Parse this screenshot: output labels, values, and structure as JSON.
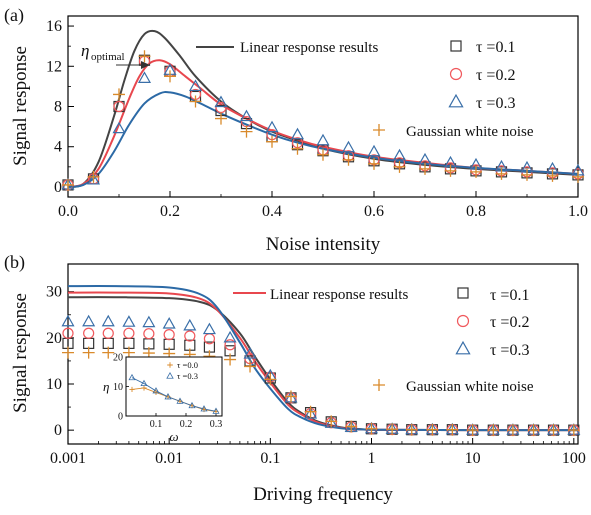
{
  "chart_data": [
    {
      "type": "line",
      "panel_label": "(a)",
      "xlabel": "Noise intensity",
      "ylabel": "Signal response",
      "xlim": [
        0,
        1.0
      ],
      "ylim": [
        -1,
        17
      ],
      "x_scale": "linear",
      "x_ticks": [
        0.0,
        0.2,
        0.4,
        0.6,
        0.8,
        1.0
      ],
      "x_tick_labels": [
        "0.0",
        "0.2",
        "0.4",
        "0.6",
        "0.8",
        "1.0"
      ],
      "y_ticks": [
        0,
        4,
        8,
        12,
        16
      ],
      "y_tick_labels": [
        "0",
        "4",
        "8",
        "12",
        "16"
      ],
      "annotation": {
        "text": "η",
        "subscript": "optimal",
        "x": 0.16,
        "y": 13.2
      },
      "legend_line_label": "Linear response results",
      "legend_noise_label": "Gaussian white noise",
      "legend_tau": [
        {
          "tau": "τ =0.1",
          "marker": "square",
          "color": "#333333"
        },
        {
          "tau": "τ =0.2",
          "marker": "circle",
          "color": "#f0585c"
        },
        {
          "tau": "τ =0.3",
          "marker": "triangle",
          "color": "#3a6fa8"
        }
      ],
      "lines": [
        {
          "color": "#444444",
          "x": [
            0,
            0.03,
            0.06,
            0.09,
            0.11,
            0.13,
            0.15,
            0.17,
            0.19,
            0.22,
            0.25,
            0.3,
            0.35,
            0.4,
            0.45,
            0.5,
            0.6,
            0.7,
            0.8,
            0.9,
            1.0
          ],
          "y": [
            0,
            0.3,
            2.5,
            7.0,
            10.5,
            13.5,
            15.2,
            15.5,
            14.8,
            13.0,
            11.0,
            8.5,
            6.8,
            5.5,
            4.6,
            3.8,
            2.8,
            2.2,
            1.8,
            1.5,
            1.2
          ]
        },
        {
          "color": "#e8474e",
          "x": [
            0,
            0.03,
            0.06,
            0.09,
            0.12,
            0.14,
            0.16,
            0.18,
            0.2,
            0.23,
            0.26,
            0.3,
            0.35,
            0.4,
            0.45,
            0.5,
            0.6,
            0.7,
            0.8,
            0.9,
            1.0
          ],
          "y": [
            0,
            0.3,
            1.8,
            5.0,
            8.8,
            11.0,
            12.3,
            12.6,
            12.2,
            11.0,
            9.8,
            8.2,
            6.8,
            5.6,
            4.7,
            4.0,
            3.0,
            2.4,
            1.9,
            1.6,
            1.3
          ]
        },
        {
          "color": "#2c6aa6",
          "x": [
            0,
            0.03,
            0.06,
            0.09,
            0.12,
            0.15,
            0.18,
            0.2,
            0.23,
            0.26,
            0.3,
            0.35,
            0.4,
            0.45,
            0.5,
            0.6,
            0.7,
            0.8,
            0.9,
            1.0
          ],
          "y": [
            0,
            0.2,
            1.3,
            3.5,
            6.2,
            8.3,
            9.3,
            9.4,
            9.0,
            8.3,
            7.3,
            6.2,
            5.2,
            4.4,
            3.8,
            2.9,
            2.3,
            1.9,
            1.6,
            1.3
          ]
        }
      ],
      "series": [
        {
          "name": "τ =0.1",
          "marker": "square",
          "color": "#333333",
          "x": [
            0.0,
            0.05,
            0.1,
            0.15,
            0.2,
            0.25,
            0.3,
            0.35,
            0.4,
            0.45,
            0.5,
            0.55,
            0.6,
            0.65,
            0.7,
            0.75,
            0.8,
            0.85,
            0.9,
            0.95,
            1.0
          ],
          "y": [
            0.2,
            0.8,
            8.0,
            12.6,
            11.5,
            9.0,
            7.6,
            6.3,
            5.0,
            4.2,
            3.6,
            3.0,
            2.6,
            2.3,
            2.0,
            1.8,
            1.6,
            1.5,
            1.4,
            1.3,
            1.2
          ]
        },
        {
          "name": "τ =0.2",
          "marker": "circle",
          "color": "#f0585c",
          "x": [
            0.0,
            0.05,
            0.1,
            0.15,
            0.2,
            0.25,
            0.3,
            0.35,
            0.4,
            0.45,
            0.5,
            0.55,
            0.6,
            0.65,
            0.7,
            0.75,
            0.8,
            0.85,
            0.9,
            0.95,
            1.0
          ],
          "y": [
            0.2,
            0.8,
            8.0,
            12.5,
            11.5,
            9.2,
            7.9,
            6.5,
            5.2,
            4.4,
            3.7,
            3.1,
            2.7,
            2.4,
            2.1,
            1.9,
            1.7,
            1.6,
            1.5,
            1.4,
            1.3
          ]
        },
        {
          "name": "τ =0.3",
          "marker": "triangle",
          "color": "#3a6fa8",
          "x": [
            0.0,
            0.05,
            0.1,
            0.15,
            0.2,
            0.25,
            0.3,
            0.35,
            0.4,
            0.45,
            0.5,
            0.55,
            0.6,
            0.65,
            0.7,
            0.75,
            0.8,
            0.85,
            0.9,
            0.95,
            1.0
          ],
          "y": [
            0.2,
            0.7,
            5.8,
            10.8,
            11.6,
            10.0,
            8.4,
            7.0,
            5.9,
            5.2,
            4.6,
            3.9,
            3.5,
            3.1,
            2.7,
            2.4,
            2.2,
            2.0,
            1.9,
            1.8,
            1.6
          ]
        },
        {
          "name": "Gaussian white noise",
          "marker": "plus",
          "color": "#d98a2b",
          "x": [
            0.0,
            0.05,
            0.1,
            0.15,
            0.2,
            0.25,
            0.3,
            0.35,
            0.4,
            0.45,
            0.5,
            0.55,
            0.6,
            0.65,
            0.7,
            0.75,
            0.8,
            0.85,
            0.9,
            0.95,
            1.0
          ],
          "y": [
            0.2,
            1.0,
            9.2,
            13.0,
            11.0,
            8.5,
            6.8,
            5.5,
            4.5,
            3.8,
            3.2,
            2.7,
            2.3,
            2.0,
            1.8,
            1.6,
            1.5,
            1.3,
            1.2,
            1.1,
            1.0
          ]
        }
      ]
    },
    {
      "type": "line",
      "panel_label": "(b)",
      "xlabel": "Driving frequency",
      "ylabel": "Signal response",
      "xlim": [
        0.001,
        110
      ],
      "ylim": [
        -3,
        36
      ],
      "x_scale": "log",
      "x_ticks": [
        0.001,
        0.01,
        0.1,
        1,
        10,
        100
      ],
      "x_tick_labels": [
        "0.001",
        "0.01",
        "0.1",
        "1",
        "10",
        "100"
      ],
      "y_ticks": [
        0,
        10,
        20,
        30
      ],
      "y_tick_labels": [
        "0",
        "10",
        "20",
        "30"
      ],
      "legend_line_label": "Linear response results",
      "legend_noise_label": "Gaussian white noise",
      "legend_tau": [
        {
          "tau": "τ =0.1",
          "marker": "square",
          "color": "#333333"
        },
        {
          "tau": "τ =0.2",
          "marker": "circle",
          "color": "#f0585c"
        },
        {
          "tau": "τ =0.3",
          "marker": "triangle",
          "color": "#3a6fa8"
        }
      ],
      "lines": [
        {
          "color": "#444444",
          "x": [
            0.001,
            0.003,
            0.01,
            0.02,
            0.03,
            0.05,
            0.07,
            0.1,
            0.15,
            0.2,
            0.3,
            0.5,
            0.7,
            1,
            2,
            10,
            110
          ],
          "y": [
            28.8,
            28.8,
            28.6,
            27.8,
            26.0,
            21.0,
            16.0,
            11.0,
            6.0,
            3.8,
            1.8,
            0.6,
            0.3,
            0.1,
            0.05,
            0,
            0
          ]
        },
        {
          "color": "#e8474e",
          "x": [
            0.001,
            0.003,
            0.01,
            0.02,
            0.03,
            0.05,
            0.07,
            0.1,
            0.15,
            0.2,
            0.3,
            0.5,
            0.7,
            1,
            2,
            10,
            110
          ],
          "y": [
            29.8,
            29.8,
            29.6,
            28.5,
            26.0,
            20.0,
            15.0,
            10.3,
            5.5,
            3.5,
            1.6,
            0.5,
            0.2,
            0.1,
            0.05,
            0,
            0
          ]
        },
        {
          "color": "#2c6aa6",
          "x": [
            0.001,
            0.003,
            0.01,
            0.02,
            0.03,
            0.05,
            0.07,
            0.1,
            0.15,
            0.2,
            0.3,
            0.5,
            0.7,
            1,
            2,
            10,
            110
          ],
          "y": [
            31.2,
            31.2,
            30.9,
            29.5,
            26.5,
            19.0,
            13.5,
            9.0,
            4.6,
            2.8,
            1.3,
            0.4,
            0.2,
            0.1,
            0.05,
            0,
            0
          ]
        }
      ],
      "series": [
        {
          "name": "τ =0.1",
          "marker": "square",
          "color": "#333333",
          "x": [
            0.001,
            0.0016,
            0.0025,
            0.004,
            0.0063,
            0.01,
            0.016,
            0.025,
            0.04,
            0.063,
            0.1,
            0.16,
            0.25,
            0.4,
            0.63,
            1,
            1.6,
            2.5,
            4,
            6.3,
            10,
            16,
            25,
            40,
            63,
            100
          ],
          "y": [
            18.8,
            18.8,
            18.8,
            18.8,
            18.7,
            18.6,
            18.4,
            18.0,
            17.2,
            15.0,
            11.3,
            7.0,
            3.8,
            1.8,
            0.8,
            0.3,
            0.2,
            0.1,
            0.1,
            0.1,
            0,
            0,
            0,
            0,
            0,
            0
          ]
        },
        {
          "name": "τ =0.2",
          "marker": "circle",
          "color": "#f0585c",
          "x": [
            0.001,
            0.0016,
            0.0025,
            0.004,
            0.0063,
            0.01,
            0.016,
            0.025,
            0.04,
            0.063,
            0.1,
            0.16,
            0.25,
            0.4,
            0.63,
            1,
            1.6,
            2.5,
            4,
            6.3,
            10,
            16,
            25,
            40,
            63,
            100
          ],
          "y": [
            21.0,
            21.0,
            21.0,
            21.0,
            20.9,
            20.7,
            20.4,
            19.8,
            18.5,
            15.5,
            11.5,
            7.0,
            3.6,
            1.6,
            0.7,
            0.3,
            0.2,
            0.1,
            0.1,
            0.1,
            0,
            0,
            0,
            0,
            0,
            0
          ]
        },
        {
          "name": "τ =0.3",
          "marker": "triangle",
          "color": "#3a6fa8",
          "x": [
            0.001,
            0.0016,
            0.0025,
            0.004,
            0.0063,
            0.01,
            0.016,
            0.025,
            0.04,
            0.063,
            0.1,
            0.16,
            0.25,
            0.4,
            0.63,
            1,
            1.6,
            2.5,
            4,
            6.3,
            10,
            16,
            25,
            40,
            63,
            100
          ],
          "y": [
            23.5,
            23.5,
            23.5,
            23.4,
            23.3,
            23.0,
            22.6,
            21.8,
            20.0,
            16.5,
            11.8,
            7.0,
            3.5,
            1.5,
            0.6,
            0.3,
            0.2,
            0.1,
            0.1,
            0.1,
            0,
            0,
            0,
            0,
            0,
            0
          ]
        },
        {
          "name": "Gaussian white noise",
          "marker": "plus",
          "color": "#d98a2b",
          "x": [
            0.001,
            0.0016,
            0.0025,
            0.004,
            0.0063,
            0.01,
            0.016,
            0.025,
            0.04,
            0.063,
            0.1,
            0.16,
            0.25,
            0.4,
            0.63,
            1,
            1.6,
            2.5,
            4,
            6.3,
            10,
            16,
            25,
            40,
            63,
            100
          ],
          "y": [
            16.8,
            16.8,
            16.8,
            16.8,
            16.7,
            16.6,
            16.4,
            16.0,
            15.3,
            13.8,
            11.0,
            7.3,
            4.0,
            1.9,
            0.8,
            0.3,
            0.2,
            0.1,
            0.1,
            0.1,
            0,
            0,
            0,
            0,
            0,
            0
          ]
        }
      ],
      "inset": {
        "xlabel": "ω",
        "ylabel": "η",
        "x_scale": "linear",
        "xlim": [
          0,
          0.32
        ],
        "ylim": [
          0,
          20
        ],
        "x_ticks": [
          0.1,
          0.2,
          0.3
        ],
        "x_tick_labels": [
          "0.1",
          "0.2",
          "0.3"
        ],
        "y_ticks": [
          0,
          10,
          20
        ],
        "y_tick_labels": [
          "0",
          "10",
          "20"
        ],
        "series": [
          {
            "name": "τ =0.0",
            "marker": "plus",
            "color": "#d98a2b",
            "x": [
              0.02,
              0.06,
              0.1,
              0.14,
              0.18,
              0.22,
              0.26,
              0.3
            ],
            "y": [
              9.0,
              9.5,
              8.0,
              6.5,
              5.0,
              3.5,
              2.2,
              1.5
            ]
          },
          {
            "name": "τ =0.3",
            "marker": "triangle",
            "color": "#3a6fa8",
            "x": [
              0.02,
              0.06,
              0.1,
              0.14,
              0.18,
              0.22,
              0.26,
              0.3
            ],
            "y": [
              13.0,
              11.0,
              8.5,
              6.5,
              5.0,
              3.5,
              2.4,
              1.6
            ]
          }
        ]
      }
    }
  ]
}
